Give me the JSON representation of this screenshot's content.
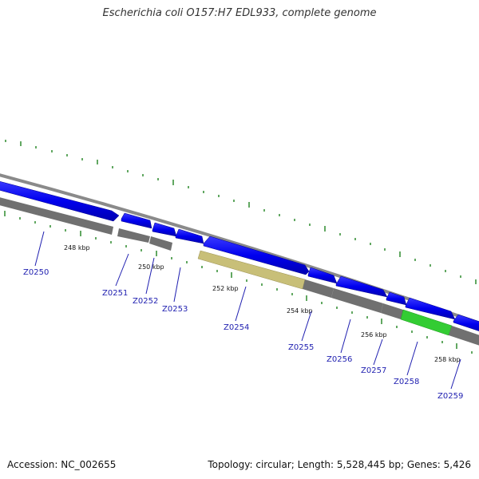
{
  "title": "Escherichia coli O157:H7 EDL933, complete genome",
  "footer": {
    "accession": "Accession: NC_002655",
    "summary": "Topology: circular; Length: 5,528,445 bp; Genes: 5,426"
  },
  "colors": {
    "cds": "#0000ee",
    "gene_track": "#707070",
    "backbone": "#8a8a8a",
    "highlight_gene": "#c8bf78",
    "highlight_gene2": "#33cc33",
    "ticks": "#2e8b2e"
  },
  "ruler_labels": [
    "248 kbp",
    "250 kbp",
    "252 kbp",
    "254 kbp",
    "256 kbp",
    "258 kbp"
  ],
  "genes": [
    "Z0250",
    "Z0251",
    "Z0252",
    "Z0253",
    "Z0254",
    "Z0255",
    "Z0256",
    "Z0257",
    "Z0258",
    "Z0259"
  ]
}
